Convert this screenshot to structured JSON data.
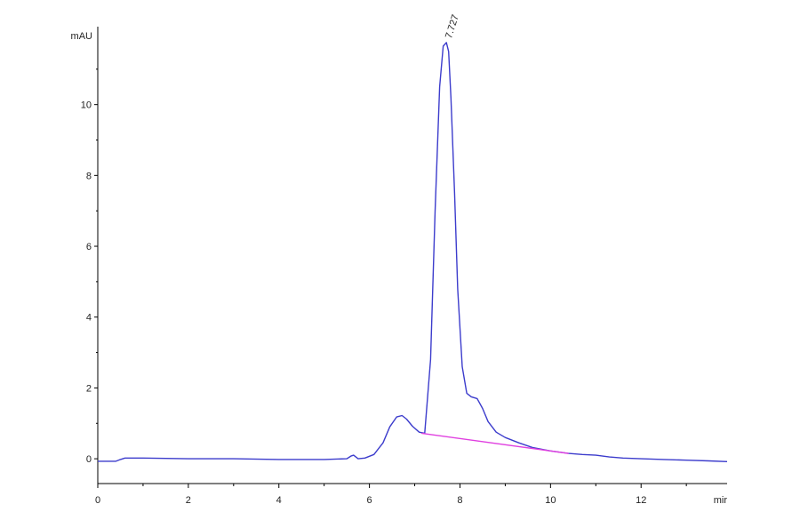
{
  "chart_data": {
    "type": "line",
    "xlabel": "mir",
    "ylabel": "mAU",
    "xlim": [
      0,
      13.9
    ],
    "ylim": [
      -0.7,
      12.2
    ],
    "x_ticks": [
      0,
      2,
      4,
      6,
      8,
      10,
      12
    ],
    "y_ticks": [
      0,
      2,
      4,
      6,
      8,
      10
    ],
    "grid": false,
    "colors": {
      "trace": "#3c3ccc",
      "baseline": "#e040e0",
      "axis": "#000000"
    },
    "series": [
      {
        "x": [
          0,
          0.4,
          0.5,
          0.6,
          1,
          2,
          3,
          4,
          5,
          5.5,
          5.6,
          5.65,
          5.75,
          5.9,
          6.1,
          6.3,
          6.45,
          6.6,
          6.72,
          6.82,
          6.95,
          7.1,
          7.22,
          7.35,
          7.45,
          7.55,
          7.63,
          7.7,
          7.75,
          7.8,
          7.88,
          7.95,
          8.05,
          8.15,
          8.25,
          8.38,
          8.5,
          8.62,
          8.8,
          9,
          9.3,
          9.6,
          10,
          10.4,
          10.7,
          11,
          11.3,
          11.6,
          12,
          12.5,
          13,
          13.5,
          13.9
        ],
        "y": [
          -0.07,
          -0.07,
          -0.02,
          0.02,
          0.02,
          0.0,
          0.0,
          -0.02,
          -0.02,
          0.0,
          0.08,
          0.1,
          0.0,
          0.02,
          0.12,
          0.45,
          0.9,
          1.18,
          1.22,
          1.12,
          0.92,
          0.75,
          0.72,
          2.8,
          7.0,
          10.5,
          11.65,
          11.75,
          11.5,
          10.2,
          7.5,
          4.8,
          2.6,
          1.85,
          1.75,
          1.7,
          1.42,
          1.05,
          0.75,
          0.6,
          0.45,
          0.32,
          0.22,
          0.15,
          0.12,
          0.1,
          0.05,
          0.02,
          0.0,
          -0.02,
          -0.04,
          -0.06,
          -0.08
        ]
      }
    ],
    "baseline_segment": {
      "x": [
        7.15,
        10.4
      ],
      "y": [
        0.72,
        0.15
      ]
    },
    "annotations": [
      {
        "text": "7.727",
        "x": 7.727,
        "y": 11.75
      }
    ]
  }
}
